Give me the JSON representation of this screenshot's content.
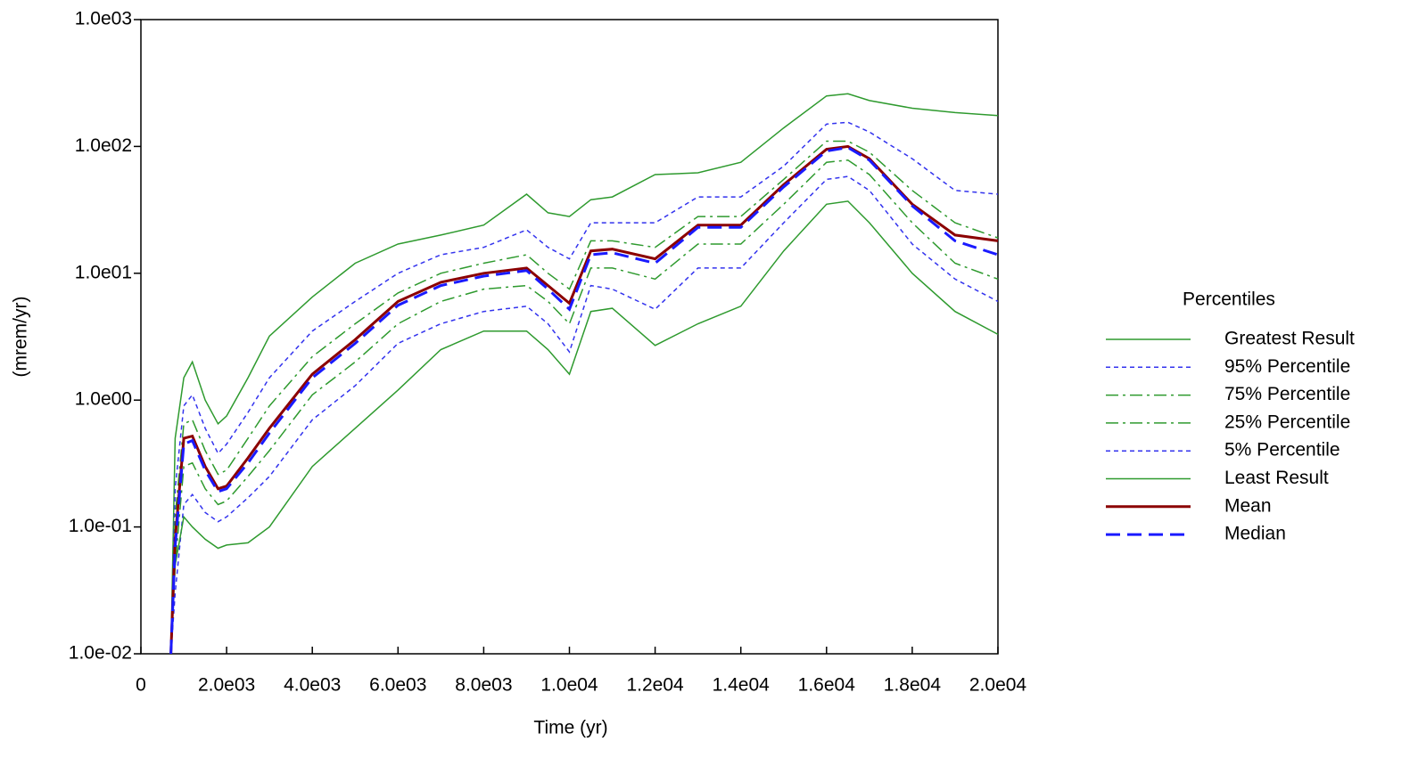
{
  "chart_data": {
    "type": "line",
    "x_label": "Time (yr)",
    "y_label": "(mrem/yr)",
    "legend_title": "Percentiles",
    "legend": "right",
    "log_y": true,
    "x": [
      700,
      800,
      1000,
      1200,
      1500,
      1800,
      2000,
      2500,
      3000,
      4000,
      5000,
      6000,
      7000,
      8000,
      9000,
      9500,
      10000,
      10500,
      11000,
      12000,
      13000,
      14000,
      15000,
      16000,
      16500,
      17000,
      18000,
      19000,
      20000
    ],
    "series": [
      {
        "name": "Greatest Result",
        "color": "#2e9a2e",
        "style": "solid",
        "width": 1.5,
        "values": [
          0.01,
          0.5,
          1.5,
          2,
          1.0,
          0.65,
          0.75,
          1.5,
          3.2,
          6.5,
          12,
          17,
          20,
          24,
          42,
          30,
          28,
          38,
          40,
          60,
          62,
          75,
          140,
          250,
          260,
          230,
          200,
          185,
          175
        ]
      },
      {
        "name": "95% Percentile",
        "color": "#3333ee",
        "style": "dotted",
        "width": 1.5,
        "values": [
          0.01,
          0.2,
          0.9,
          1.1,
          0.6,
          0.38,
          0.45,
          0.8,
          1.5,
          3.5,
          6,
          10,
          14,
          16,
          22,
          16,
          13,
          25,
          25,
          25,
          40,
          40,
          70,
          150,
          155,
          130,
          80,
          45,
          42
        ]
      },
      {
        "name": "75% Percentile",
        "color": "#2e9a2e",
        "style": "dashdot",
        "width": 1.5,
        "values": [
          0.01,
          0.12,
          0.65,
          0.7,
          0.4,
          0.26,
          0.28,
          0.5,
          0.9,
          2.2,
          4,
          7,
          10,
          12,
          14,
          10,
          7.5,
          18,
          18,
          16,
          28,
          28,
          55,
          110,
          110,
          90,
          45,
          25,
          19
        ]
      },
      {
        "name": "25% Percentile",
        "color": "#2e9a2e",
        "style": "dashdot",
        "width": 1.5,
        "values": [
          0.01,
          0.05,
          0.3,
          0.32,
          0.2,
          0.15,
          0.16,
          0.25,
          0.4,
          1.1,
          2,
          4,
          6,
          7.5,
          8,
          6,
          4,
          11,
          11,
          9,
          17,
          17,
          35,
          75,
          78,
          60,
          25,
          12,
          9
        ]
      },
      {
        "name": "5% Percentile",
        "color": "#3333ee",
        "style": "dotted",
        "width": 1.5,
        "values": [
          0.01,
          0.03,
          0.15,
          0.18,
          0.13,
          0.11,
          0.12,
          0.17,
          0.25,
          0.7,
          1.3,
          2.8,
          4,
          5,
          5.5,
          4,
          2.4,
          8,
          7.5,
          5.2,
          11,
          11,
          25,
          55,
          58,
          45,
          17,
          9,
          6
        ]
      },
      {
        "name": "Least Result",
        "color": "#2e9a2e",
        "style": "solid",
        "width": 1.5,
        "values": [
          0.01,
          0.05,
          0.12,
          0.1,
          0.08,
          0.068,
          0.072,
          0.075,
          0.1,
          0.3,
          0.6,
          1.2,
          2.5,
          3.5,
          3.5,
          2.5,
          1.6,
          5,
          5.3,
          2.7,
          4,
          5.5,
          15,
          35,
          37,
          25,
          10,
          5,
          3.3
        ]
      },
      {
        "name": "Mean",
        "color": "#8b0000",
        "style": "solid",
        "width": 3,
        "values": [
          0.01,
          0.08,
          0.5,
          0.52,
          0.3,
          0.2,
          0.21,
          0.35,
          0.6,
          1.6,
          3,
          6,
          8.5,
          10,
          11,
          8,
          5.8,
          15,
          15.5,
          13,
          24,
          24,
          50,
          95,
          100,
          80,
          35,
          20,
          18
        ]
      },
      {
        "name": "Median",
        "color": "#1a1aff",
        "style": "dashed",
        "width": 3,
        "values": [
          0.01,
          0.07,
          0.45,
          0.48,
          0.28,
          0.19,
          0.2,
          0.32,
          0.55,
          1.5,
          2.8,
          5.6,
          8,
          9.5,
          10.5,
          7.5,
          5.2,
          14,
          14.5,
          12,
          23,
          23,
          48,
          92,
          98,
          78,
          34,
          18,
          14
        ]
      }
    ],
    "xlim": [
      0,
      20000
    ],
    "xticks": [
      0,
      {
        "value": 2000,
        "label": "2.0e03"
      },
      {
        "value": 4000,
        "label": "4.0e03"
      },
      {
        "value": 6000,
        "label": "6.0e03"
      },
      {
        "value": 8000,
        "label": "8.0e03"
      },
      {
        "value": 10000,
        "label": "1.0e04"
      },
      {
        "value": 12000,
        "label": "1.2e04"
      },
      {
        "value": 14000,
        "label": "1.4e04"
      },
      {
        "value": 16000,
        "label": "1.6e04"
      },
      {
        "value": 18000,
        "label": "1.8e04"
      },
      {
        "value": 20000,
        "label": "2.0e04"
      }
    ],
    "ylim": [
      0.01,
      1000
    ],
    "yticks": [
      {
        "value": 0.01,
        "label": "1.0e-02"
      },
      {
        "value": 0.1,
        "label": "1.0e-01"
      },
      {
        "value": 1,
        "label": "1.0e00"
      },
      {
        "value": 10,
        "label": "1.0e01"
      },
      {
        "value": 100,
        "label": "1.0e02"
      },
      {
        "value": 1000,
        "label": "1.0e03"
      }
    ]
  }
}
